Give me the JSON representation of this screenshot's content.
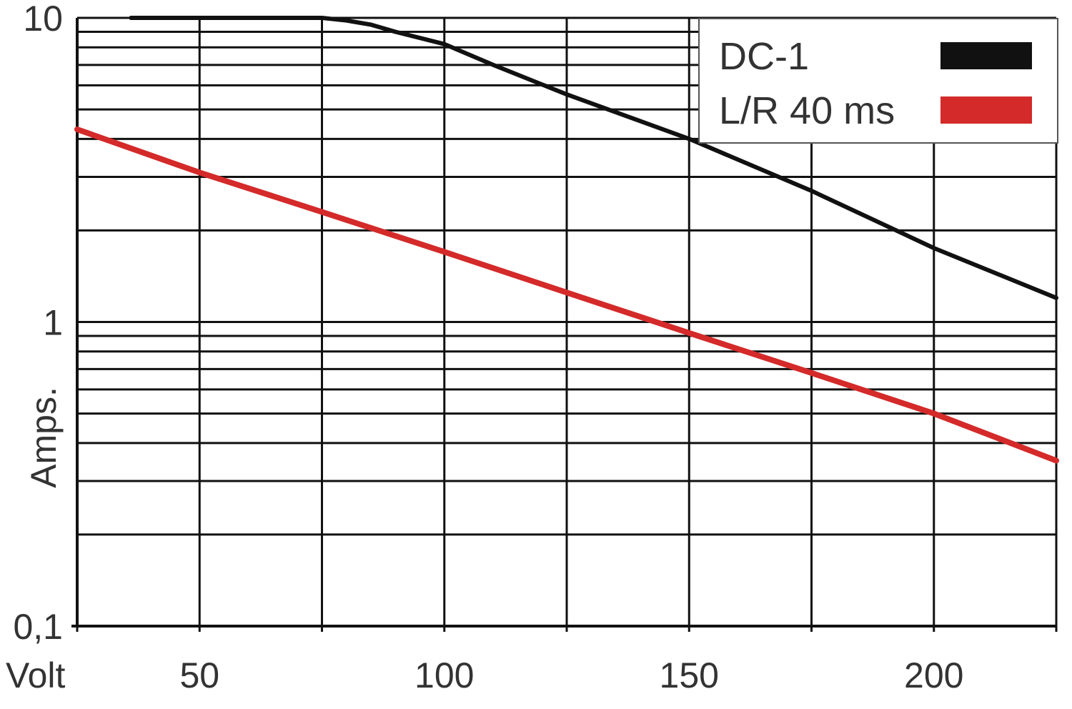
{
  "chart_data": {
    "type": "line",
    "x_scale": "linear",
    "y_scale": "log",
    "xlim": [
      25,
      225
    ],
    "ylim": [
      0.1,
      10
    ],
    "grid": true,
    "xlabel": "Volt",
    "ylabel": "Amps.",
    "x_ticks": [
      {
        "value": 50,
        "label": "50"
      },
      {
        "value": 100,
        "label": "100"
      },
      {
        "value": 150,
        "label": "150"
      },
      {
        "value": 200,
        "label": "200"
      }
    ],
    "y_ticks": [
      {
        "value": 10,
        "label": "10"
      },
      {
        "value": 1,
        "label": "1"
      },
      {
        "value": 0.1,
        "label": "0,1"
      }
    ],
    "legend_position": "top-right",
    "series": [
      {
        "name": "DC-1",
        "color": "#111111",
        "points": [
          {
            "x": 36,
            "y": 10
          },
          {
            "x": 50,
            "y": 10
          },
          {
            "x": 70,
            "y": 10
          },
          {
            "x": 75,
            "y": 10
          },
          {
            "x": 80,
            "y": 9.8
          },
          {
            "x": 85,
            "y": 9.5
          },
          {
            "x": 90,
            "y": 9.0
          },
          {
            "x": 100,
            "y": 8.2
          },
          {
            "x": 110,
            "y": 7.0
          },
          {
            "x": 125,
            "y": 5.6
          },
          {
            "x": 150,
            "y": 4.0
          },
          {
            "x": 175,
            "y": 2.7
          },
          {
            "x": 200,
            "y": 1.75
          },
          {
            "x": 225,
            "y": 1.2
          }
        ]
      },
      {
        "name": "L/R 40 ms",
        "color": "#d42a2a",
        "points": [
          {
            "x": 25,
            "y": 4.3
          },
          {
            "x": 50,
            "y": 3.1
          },
          {
            "x": 75,
            "y": 2.3
          },
          {
            "x": 100,
            "y": 1.7
          },
          {
            "x": 125,
            "y": 1.25
          },
          {
            "x": 150,
            "y": 0.92
          },
          {
            "x": 175,
            "y": 0.68
          },
          {
            "x": 200,
            "y": 0.5
          },
          {
            "x": 225,
            "y": 0.35
          }
        ]
      }
    ]
  }
}
